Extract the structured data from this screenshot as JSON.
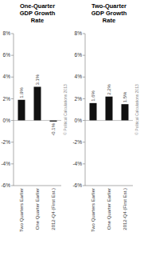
{
  "chart_data": [
    {
      "type": "bar",
      "title": "One-Quarter\nGDP Growth\nRate",
      "categories": [
        "Two Quarters Earlier",
        "One Quarter Earlier",
        "2012-Q4 (First Est.)"
      ],
      "values": [
        1.9,
        3.1,
        -0.1
      ],
      "value_labels": [
        "1.9%",
        "3.1%",
        "-0.1%"
      ],
      "data_labels": true,
      "color": "#111111",
      "ylim": [
        -6,
        8
      ],
      "yticks": [
        {
          "value": -6,
          "label": "-6%"
        },
        {
          "value": -4,
          "label": "-4%"
        },
        {
          "value": -2,
          "label": "-2%"
        },
        {
          "value": 0,
          "label": "0%"
        },
        {
          "value": 2,
          "label": "2%"
        },
        {
          "value": 4,
          "label": "4%"
        },
        {
          "value": 6,
          "label": "6%"
        },
        {
          "value": 8,
          "label": "8%"
        }
      ],
      "annotation": "© Political Calculations 2013"
    },
    {
      "type": "bar",
      "title": "Two-Quarter\nGDP Growth\nRate",
      "categories": [
        "Two Quarters Earlier",
        "One Quarter Earlier",
        "2012-Q4 (First Est.)"
      ],
      "values": [
        1.6,
        2.2,
        1.5
      ],
      "value_labels": [
        "1.6%",
        "2.2%",
        "1.5%"
      ],
      "data_labels": true,
      "color": "#111111",
      "ylim": [
        -6,
        8
      ],
      "yticks": [
        {
          "value": -6,
          "label": "-6%"
        },
        {
          "value": -4,
          "label": "-4%"
        },
        {
          "value": -2,
          "label": "-2%"
        },
        {
          "value": 0,
          "label": "0%"
        },
        {
          "value": 2,
          "label": "2%"
        },
        {
          "value": 4,
          "label": "4%"
        },
        {
          "value": 6,
          "label": "6%"
        },
        {
          "value": 8,
          "label": "8%"
        }
      ],
      "annotation": "© Political Calculations 2013"
    }
  ]
}
